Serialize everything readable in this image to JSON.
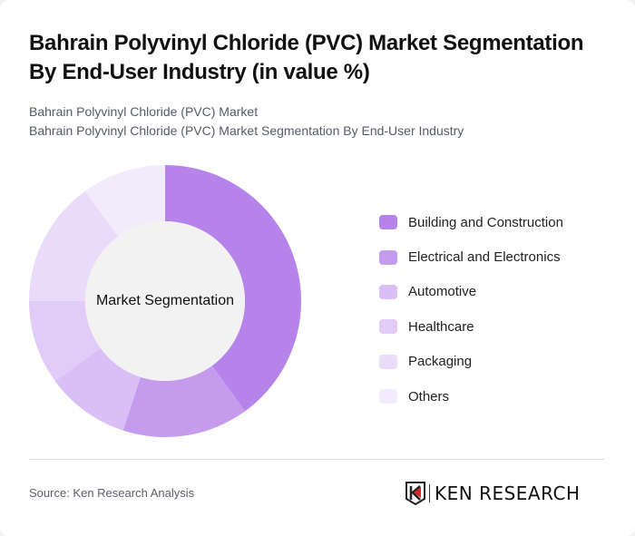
{
  "header": {
    "title": "Bahrain Polyvinyl Chloride (PVC) Market Segmentation By End-User Industry (in value %)",
    "subtitle_line1": "Bahrain Polyvinyl Chloride (PVC) Market",
    "subtitle_line2": "Bahrain Polyvinyl Chloride (PVC) Market Segmentation By End-User Industry"
  },
  "chart": {
    "center_label": "Market Segmentation"
  },
  "legend": {
    "items": [
      {
        "label": "Building and Construction",
        "color": "#b683ea"
      },
      {
        "label": "Electrical and Electronics",
        "color": "#c59bed"
      },
      {
        "label": "Automotive",
        "color": "#d9bff5"
      },
      {
        "label": "Healthcare",
        "color": "#e0ccf6"
      },
      {
        "label": "Packaging",
        "color": "#e9dbf9"
      },
      {
        "label": "Others",
        "color": "#f2ebfc"
      }
    ]
  },
  "footer": {
    "source": "Source: Ken Research Analysis",
    "logo_text": "KEN RESEARCH"
  },
  "chart_data": {
    "type": "pie",
    "subtype": "donut",
    "title": "Bahrain Polyvinyl Chloride (PVC) Market Segmentation By End-User Industry (in value %)",
    "center_label": "Market Segmentation",
    "categories": [
      "Building and Construction",
      "Electrical and Electronics",
      "Automotive",
      "Healthcare",
      "Packaging",
      "Others"
    ],
    "values": [
      40,
      15,
      10,
      10,
      15,
      10
    ],
    "colors": [
      "#b683ea",
      "#c59bed",
      "#d9bff5",
      "#e0ccf6",
      "#e9dbf9",
      "#f2ebfc"
    ],
    "legend_position": "right",
    "unit": "%"
  }
}
